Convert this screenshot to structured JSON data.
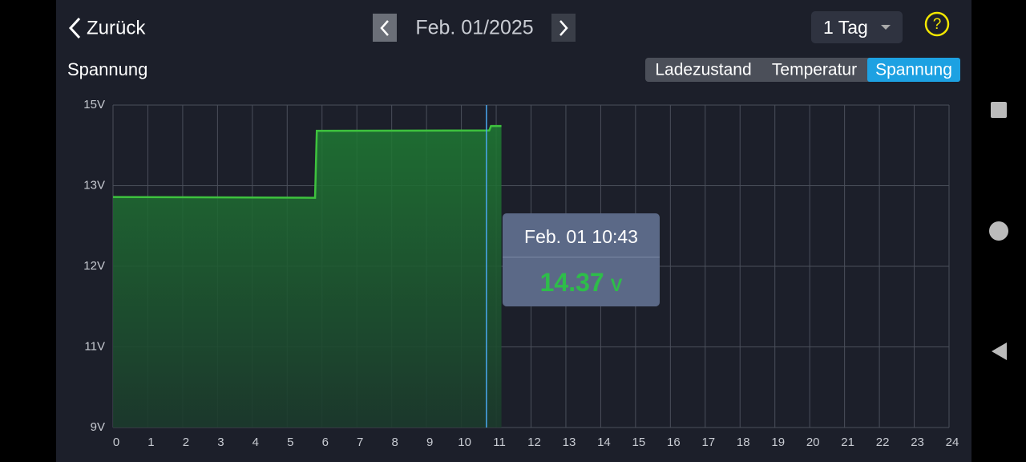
{
  "header": {
    "back": "Zurück",
    "date": "Feb. 01/2025",
    "range": "1 Tag",
    "help": "?"
  },
  "section_title": "Spannung",
  "tabs": [
    "Ladezustand",
    "Temperatur",
    "Spannung"
  ],
  "active_tab": 2,
  "chart_data": {
    "type": "area",
    "x": [
      0,
      5.8,
      5.85,
      10.8,
      10.85,
      11.15
    ],
    "series": [
      {
        "name": "Spannung",
        "color": "#3ec23e",
        "values": [
          12.86,
          12.85,
          14.36,
          14.37,
          14.48,
          14.48
        ]
      }
    ],
    "xlim": [
      0,
      24
    ],
    "xticks": [
      0,
      1,
      2,
      3,
      4,
      5,
      6,
      7,
      8,
      9,
      10,
      11,
      12,
      13,
      14,
      15,
      16,
      17,
      18,
      19,
      20,
      21,
      22,
      23,
      24
    ],
    "ylim": [
      9,
      15
    ],
    "yticks": [
      {
        "value": 9,
        "label": "9V"
      },
      {
        "value": 11,
        "label": "11V"
      },
      {
        "value": 12,
        "label": "12V"
      },
      {
        "value": 13,
        "label": "13V"
      },
      {
        "value": 15,
        "label": "15V"
      }
    ],
    "grid": true,
    "cursor_x": 10.72
  },
  "tooltip": {
    "time": "Feb. 01 10:43",
    "value": 14.37,
    "unit": "V"
  }
}
